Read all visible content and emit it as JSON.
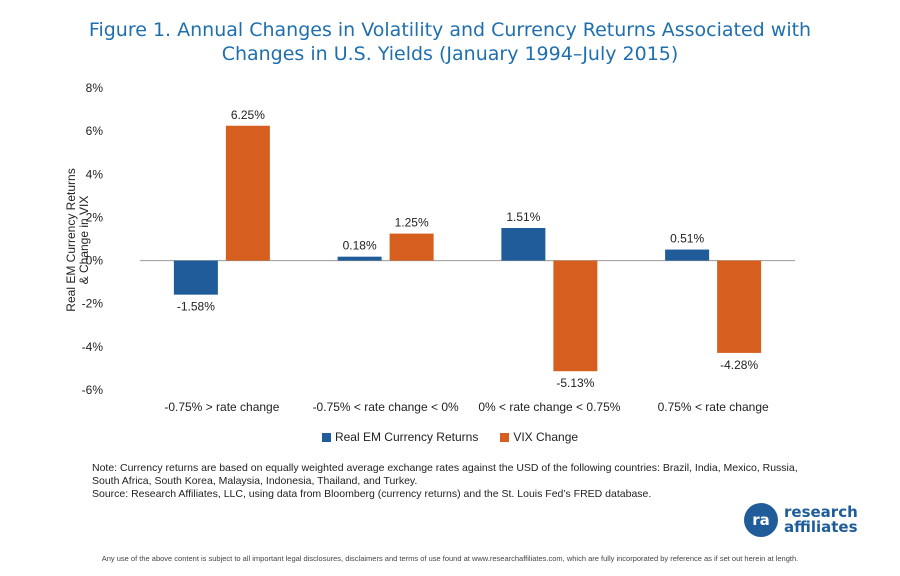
{
  "title_line1": "Figure 1.  Annual Changes in Volatility and Currency Returns Associated with",
  "title_line2": "Changes in U.S. Yields (January 1994–July 2015)",
  "chart_data": {
    "type": "bar",
    "categories": [
      "-0.75% > rate change",
      "-0.75% < rate change < 0%",
      "0% < rate change < 0.75%",
      "0.75% < rate change"
    ],
    "series": [
      {
        "name": "Real EM Currency Returns",
        "color": "#1f5c99",
        "values": [
          -1.58,
          0.18,
          1.51,
          0.51
        ],
        "labels": [
          "-1.58%",
          "0.18%",
          "1.51%",
          "0.51%"
        ]
      },
      {
        "name": "VIX Change",
        "color": "#d65f1f",
        "values": [
          6.25,
          1.25,
          -5.13,
          -4.28
        ],
        "labels": [
          "6.25%",
          "1.25%",
          "-5.13%",
          "-4.28%"
        ]
      }
    ],
    "ylabel_line1": "Real EM Currency Returns",
    "ylabel_line2": "& Change in VIX",
    "ylim": [
      -6,
      8
    ],
    "yticks": [
      8,
      6,
      4,
      2,
      0,
      -2,
      -4,
      -6
    ],
    "ytick_labels": [
      "8%",
      "6%",
      "4%",
      "2%",
      "0%",
      "-2%",
      "-4%",
      "-6%"
    ],
    "legend_position": "bottom",
    "grid": false
  },
  "note_line1": "Note: Currency returns are based on equally weighted average exchange rates against the USD of the following countries: Brazil, India, Mexico, Russia,",
  "note_line2": "South Africa, South Korea, Malaysia, Indonesia, Thailand, and Turkey.",
  "source": "Source: Research Affiliates, LLC, using data from Bloomberg (currency returns) and the St. Louis Fed’s FRED database.",
  "logo_text_line1": "research",
  "logo_text_line2": "affiliates",
  "logo_mark": "ra",
  "disclaimer": "Any use of the above content is subject to all important legal disclosures, disclaimers and terms of use found at www.researchaffiliates.com, which are fully incorporated by reference as if set out herein at length."
}
